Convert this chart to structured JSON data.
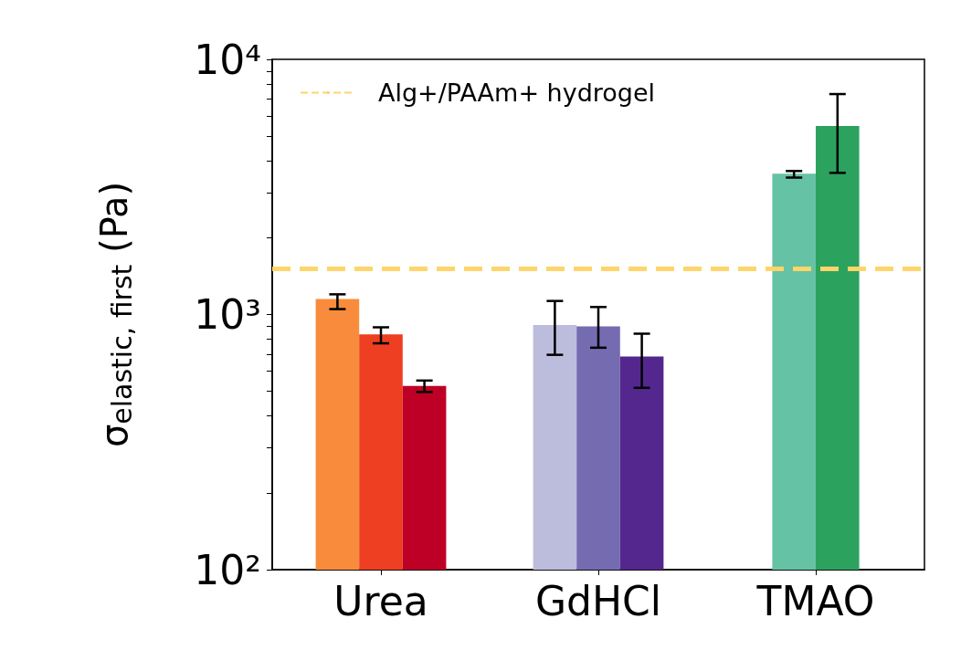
{
  "chart_data": {
    "type": "bar",
    "ylabel": "σ$_{elastic, first}$ (Pa)",
    "categories": [
      "Urea",
      "GdHCl",
      "TMAO"
    ],
    "log": true,
    "ylim": [
      100,
      10000
    ],
    "yticks": [
      {
        "value": 100,
        "label": "10²"
      },
      {
        "value": 200,
        "label": null
      },
      {
        "value": 300,
        "label": null
      },
      {
        "value": 400,
        "label": null
      },
      {
        "value": 500,
        "label": null
      },
      {
        "value": 600,
        "label": null
      },
      {
        "value": 700,
        "label": null
      },
      {
        "value": 800,
        "label": null
      },
      {
        "value": 900,
        "label": null
      },
      {
        "value": 1000,
        "label": "10³"
      },
      {
        "value": 2000,
        "label": null
      },
      {
        "value": 3000,
        "label": null
      },
      {
        "value": 4000,
        "label": null
      },
      {
        "value": 5000,
        "label": null
      },
      {
        "value": 6000,
        "label": null
      },
      {
        "value": 7000,
        "label": null
      },
      {
        "value": 8000,
        "label": null
      },
      {
        "value": 9000,
        "label": null
      },
      {
        "value": 10000,
        "label": "10⁴"
      }
    ],
    "series": [
      {
        "colors": [
          "#f98c3c",
          "#bcbddc",
          "#66c2a4"
        ],
        "values": [
          1150,
          910,
          3560
        ],
        "errors": [
          [
            1050,
            1200
          ],
          [
            695,
            1130
          ],
          [
            3440,
            3650
          ]
        ]
      },
      {
        "colors": [
          "#ee3f22",
          "#756bb1",
          "#2ca25f"
        ],
        "values": [
          836,
          898,
          5480
        ],
        "errors": [
          [
            771,
            891
          ],
          [
            741,
            1070
          ],
          [
            3590,
            7310
          ]
        ]
      },
      {
        "colors": [
          "#bf0026",
          "#54278f",
          null
        ],
        "values": [
          525,
          684,
          null
        ],
        "errors": [
          [
            497,
            551
          ],
          [
            516,
            841
          ],
          null
        ]
      }
    ],
    "ref_lines": [
      {
        "axis": "y",
        "value": 1510,
        "label": "Alg+/PAAm+ hydrogel",
        "color": "#fdd56a",
        "line_style": "dashed"
      }
    ],
    "legend": "top left"
  }
}
